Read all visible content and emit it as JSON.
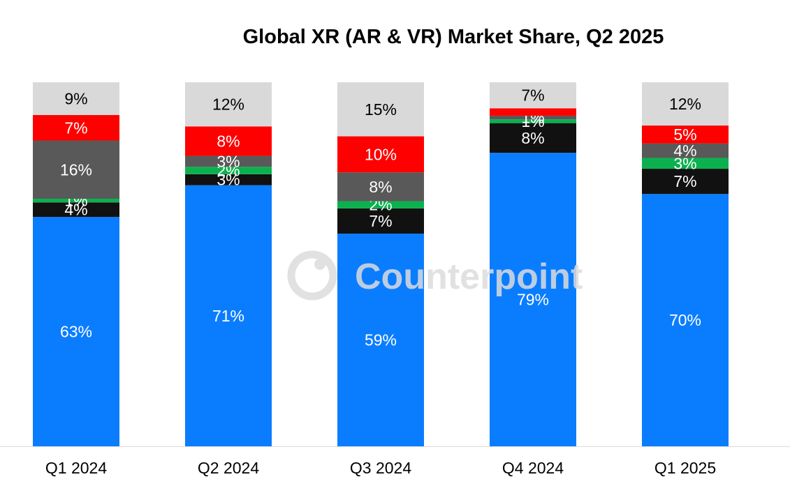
{
  "chart_data": {
    "type": "bar",
    "stacked": true,
    "title": "Global XR (AR & VR) Market Share, Q2 2025",
    "xlabel": "",
    "ylabel": "",
    "ylim": [
      0,
      100
    ],
    "grid": false,
    "categories": [
      "Q1 2024",
      "Q2 2024",
      "Q3 2024",
      "Q4 2024",
      "Q1 2025"
    ],
    "series": [
      {
        "name": "Segment 1",
        "color": "#0A7DFF",
        "label_color": "#FFFFFF",
        "values": [
          63,
          71,
          59,
          79,
          70
        ],
        "labels": [
          "63%",
          "71%",
          "59%",
          "79%",
          "70%"
        ]
      },
      {
        "name": "Segment 2",
        "color": "#111111",
        "label_color": "#FFFFFF",
        "values": [
          4,
          3,
          7,
          8,
          7
        ],
        "labels": [
          "4%",
          "3%",
          "7%",
          "8%",
          "7%"
        ]
      },
      {
        "name": "Segment 3",
        "color": "#0BB14F",
        "label_color": "#FFFFFF",
        "values": [
          1,
          2,
          2,
          1,
          3
        ],
        "labels": [
          "1%",
          "2%",
          "2%",
          "1%",
          "3%"
        ]
      },
      {
        "name": "Segment 4",
        "color": "#595959",
        "label_color": "#FFFFFF",
        "values": [
          16,
          3,
          8,
          1,
          4
        ],
        "labels": [
          "16%",
          "3%",
          "8%",
          "1%",
          "4%"
        ]
      },
      {
        "name": "Segment 5",
        "color": "#FF0000",
        "label_color": "#FFFFFF",
        "values": [
          7,
          8,
          10,
          2,
          5
        ],
        "labels": [
          "7%",
          "8%",
          "10%",
          "",
          "5%"
        ]
      },
      {
        "name": "Segment 6",
        "color": "#D9D9D9",
        "label_color": "#000000",
        "values": [
          9,
          12,
          15,
          7,
          12
        ],
        "labels": [
          "9%",
          "12%",
          "15%",
          "7%",
          "12%"
        ]
      }
    ]
  },
  "watermark": {
    "text": "Counterpoint",
    "icon": "counterpoint-logo-icon"
  },
  "colors": {
    "axis_line": "#D9D9D9",
    "watermark": "#DCDCDC"
  }
}
